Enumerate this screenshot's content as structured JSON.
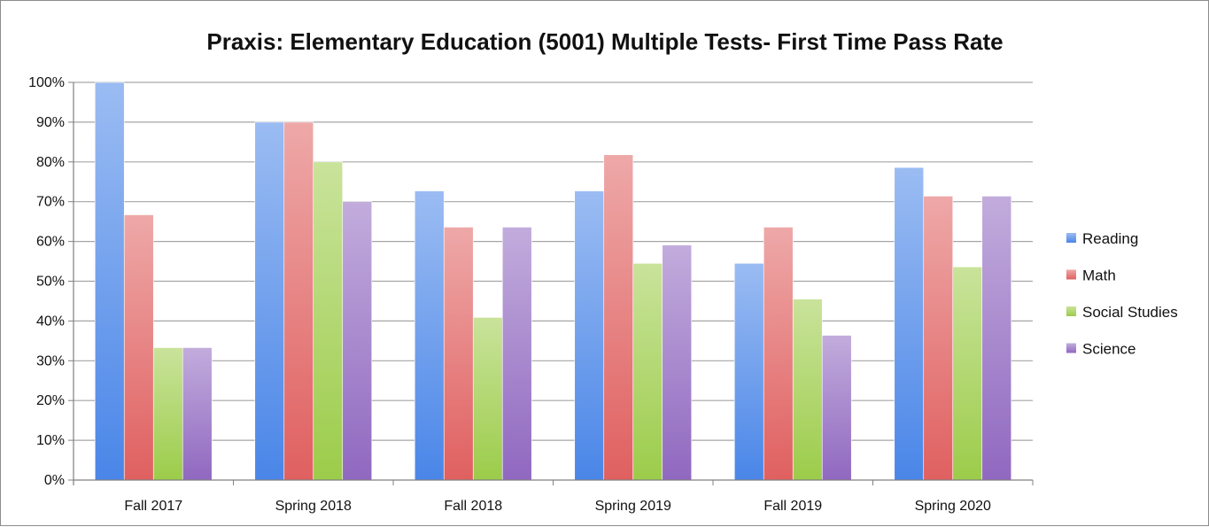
{
  "chart_data": {
    "type": "bar",
    "title": "Praxis: Elementary Education (5001) Multiple Tests- First Time Pass Rate",
    "xlabel": "",
    "ylabel": "",
    "categories": [
      "Fall 2017",
      "Spring 2018",
      "Fall 2018",
      "Spring 2019",
      "Fall 2019",
      "Spring 2020"
    ],
    "series": [
      {
        "name": "Reading",
        "color": "#4a86e8",
        "values": [
          100,
          90,
          72.7,
          72.7,
          54.5,
          78.6
        ]
      },
      {
        "name": "Math",
        "color": "#e06060",
        "values": [
          66.7,
          90,
          63.6,
          81.8,
          63.6,
          71.4
        ]
      },
      {
        "name": "Social Studies",
        "color": "#9ccc4a",
        "values": [
          33.3,
          80,
          40.9,
          54.5,
          45.5,
          53.6
        ]
      },
      {
        "name": "Science",
        "color": "#9068c0",
        "values": [
          33.3,
          70,
          63.6,
          59.1,
          36.4,
          71.4
        ]
      }
    ],
    "y_ticks": [
      "0%",
      "10%",
      "20%",
      "30%",
      "40%",
      "50%",
      "60%",
      "70%",
      "80%",
      "90%",
      "100%"
    ],
    "ylim": [
      0,
      100
    ],
    "grid": true,
    "legend": "right"
  }
}
